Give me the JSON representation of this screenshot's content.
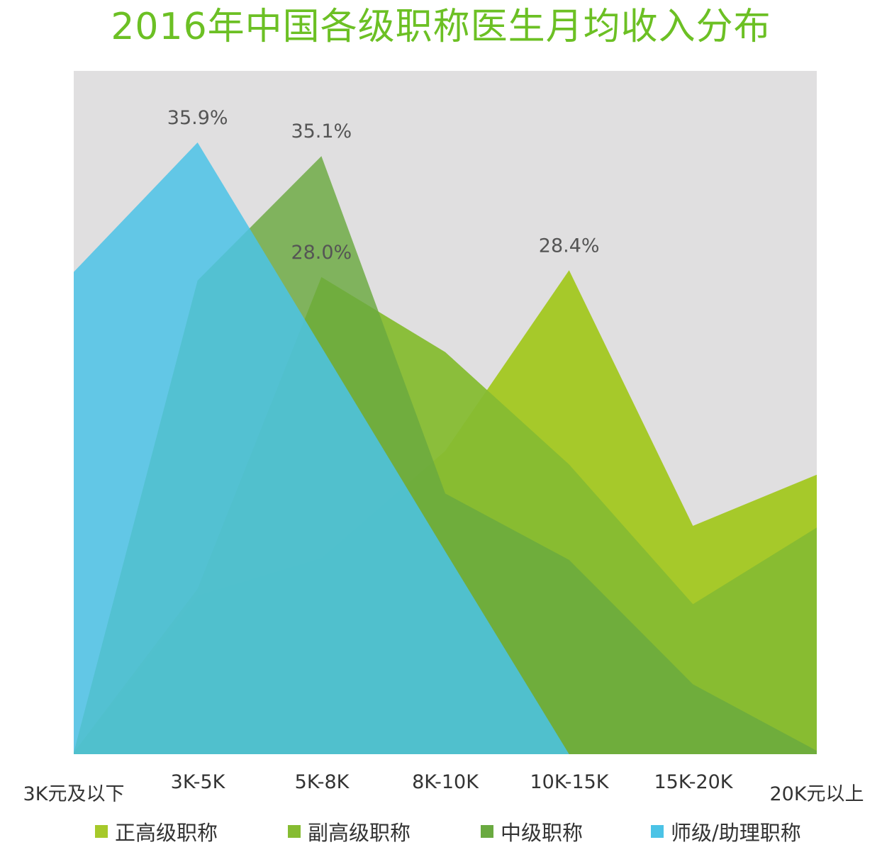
{
  "title": "2016年中国各级职称医生月均收入分布",
  "colors": {
    "title": "#6cc024",
    "plot_bg": "#e0dfe0",
    "zhenggao": "#a6c92a",
    "fugao": "#86bc32",
    "zhongji": "#6aaa40",
    "shiji": "#4bc3e6"
  },
  "chart_data": {
    "type": "area",
    "title": "2016年中国各级职称医生月均收入分布",
    "xlabel": "",
    "ylabel": "",
    "ylim": [
      0,
      40
    ],
    "grid": false,
    "legend_position": "bottom",
    "categories": [
      "3K元及以下",
      "3K-5K",
      "5K-8K",
      "8K-10K",
      "10K-15K",
      "15K-20K",
      "20K元以上"
    ],
    "series": [
      {
        "name": "正高级职称",
        "values": [
          0.1,
          9.3,
          11.5,
          17.8,
          28.4,
          13.4,
          16.4
        ]
      },
      {
        "name": "副高级职称",
        "values": [
          0.1,
          9.7,
          28.0,
          23.6,
          17.0,
          8.8,
          13.3
        ]
      },
      {
        "name": "中级职称",
        "values": [
          0.1,
          27.8,
          35.1,
          15.3,
          11.4,
          4.1,
          0.2
        ]
      },
      {
        "name": "师级/助理职称",
        "values": [
          28.3,
          35.9,
          23.9,
          11.9,
          0.0,
          0.0,
          0.0
        ]
      }
    ],
    "annotations": [
      {
        "series": "师级/助理职称",
        "category": "3K-5K",
        "text": "35.9%"
      },
      {
        "series": "中级职称",
        "category": "5K-8K",
        "text": "35.1%"
      },
      {
        "series": "副高级职称",
        "category": "5K-8K",
        "text": "28.0%"
      },
      {
        "series": "正高级职称",
        "category": "10K-15K",
        "text": "28.4%"
      }
    ]
  },
  "legend": [
    {
      "label": "正高级职称",
      "color": "#a6c92a"
    },
    {
      "label": "副高级职称",
      "color": "#86bc32"
    },
    {
      "label": "中级职称",
      "color": "#6aaa40"
    },
    {
      "label": "师级/助理职称",
      "color": "#4bc3e6"
    }
  ]
}
